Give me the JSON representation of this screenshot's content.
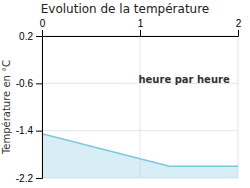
{
  "chart_data": {
    "type": "area",
    "title": "Evolution de la température",
    "ylabel": "Température en °C",
    "x": [
      0,
      1.3,
      2
    ],
    "values": [
      -1.45,
      -2.0,
      -2.0
    ],
    "color": "#7ac8e0",
    "xlim": [
      0,
      2
    ],
    "ylim": [
      -2.2,
      0.2
    ],
    "xticks": [
      0,
      1,
      2
    ],
    "yticks": [
      0.2,
      -0.6,
      -1.4,
      -2.2
    ],
    "grid": true,
    "annotations": [
      {
        "text": "heure par heure",
        "x": 1.45,
        "y": -0.55
      }
    ]
  }
}
